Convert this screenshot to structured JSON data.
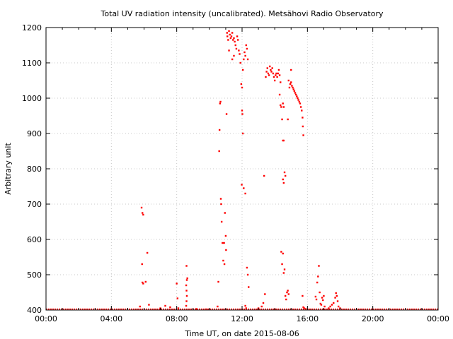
{
  "chart_data": {
    "type": "scatter",
    "title": "Total UV radiation intensity (uncalibrated). Metsähovi Radio Observatory",
    "xlabel": "Time UT, on date 2015-08-06",
    "ylabel": "Arbitrary unit",
    "xlim": [
      0,
      24
    ],
    "ylim": [
      400,
      1200
    ],
    "x_unit": "hours UT",
    "x_ticks": [
      0,
      4,
      8,
      12,
      16,
      20,
      24
    ],
    "x_tick_labels": [
      "00:00",
      "04:00",
      "08:00",
      "12:00",
      "16:00",
      "20:00",
      "00:00"
    ],
    "y_ticks": [
      400,
      500,
      600,
      700,
      800,
      900,
      1000,
      1100,
      1200
    ],
    "y_tick_labels": [
      "400",
      "500",
      "600",
      "700",
      "800",
      "900",
      "1000",
      "1100",
      "1200"
    ],
    "grid": true,
    "legend": "none",
    "marker_color": "#ff0000",
    "baseline": {
      "x_start": 0,
      "x_end": 24,
      "y": 400
    },
    "series": [
      {
        "points": [
          [
            5.75,
            410
          ],
          [
            5.85,
            690
          ],
          [
            5.9,
            675
          ],
          [
            5.95,
            670
          ],
          [
            5.88,
            530
          ],
          [
            5.9,
            478
          ],
          [
            5.95,
            475
          ],
          [
            6.1,
            480
          ],
          [
            6.2,
            562
          ],
          [
            6.3,
            415
          ],
          [
            7.0,
            405
          ],
          [
            7.3,
            412
          ],
          [
            7.6,
            408
          ],
          [
            8.0,
            475
          ],
          [
            8.05,
            433
          ],
          [
            8.1,
            405
          ],
          [
            8.6,
            525
          ],
          [
            8.65,
            490
          ],
          [
            8.62,
            485
          ],
          [
            8.58,
            470
          ],
          [
            8.6,
            455
          ],
          [
            8.62,
            440
          ],
          [
            8.6,
            425
          ],
          [
            8.58,
            412
          ],
          [
            9.2,
            403
          ],
          [
            9.8,
            402
          ],
          [
            10.5,
            410
          ],
          [
            10.55,
            480
          ],
          [
            10.6,
            850
          ],
          [
            10.62,
            910
          ],
          [
            10.65,
            985
          ],
          [
            10.68,
            990
          ],
          [
            10.7,
            715
          ],
          [
            10.72,
            700
          ],
          [
            10.75,
            650
          ],
          [
            10.8,
            590
          ],
          [
            10.85,
            540
          ],
          [
            10.9,
            590
          ],
          [
            10.92,
            530
          ],
          [
            10.95,
            675
          ],
          [
            11.0,
            610
          ],
          [
            11.02,
            570
          ],
          [
            11.05,
            955
          ],
          [
            11.08,
            1185
          ],
          [
            11.1,
            1175
          ],
          [
            11.15,
            1165
          ],
          [
            11.2,
            1190
          ],
          [
            11.25,
            1180
          ],
          [
            11.3,
            1170
          ],
          [
            11.35,
            1175
          ],
          [
            11.4,
            1185
          ],
          [
            11.45,
            1165
          ],
          [
            11.5,
            1170
          ],
          [
            11.55,
            1160
          ],
          [
            11.6,
            1150
          ],
          [
            11.65,
            1140
          ],
          [
            11.7,
            1175
          ],
          [
            11.75,
            1165
          ],
          [
            11.8,
            1135
          ],
          [
            11.85,
            1125
          ],
          [
            11.9,
            1100
          ],
          [
            11.95,
            1040
          ],
          [
            12.0,
            1030
          ],
          [
            12.05,
            1080
          ],
          [
            12.1,
            1110
          ],
          [
            12.15,
            1130
          ],
          [
            12.2,
            1120
          ],
          [
            12.25,
            1150
          ],
          [
            12.3,
            1140
          ],
          [
            12.35,
            1110
          ],
          [
            12.0,
            965
          ],
          [
            12.02,
            955
          ],
          [
            12.05,
            900
          ],
          [
            11.98,
            755
          ],
          [
            12.1,
            745
          ],
          [
            12.2,
            730
          ],
          [
            12.3,
            520
          ],
          [
            12.35,
            500
          ],
          [
            12.4,
            465
          ],
          [
            12.2,
            412
          ],
          [
            12.25,
            405
          ],
          [
            11.2,
            1135
          ],
          [
            11.5,
            1120
          ],
          [
            11.4,
            1110
          ],
          [
            13.0,
            405
          ],
          [
            13.2,
            410
          ],
          [
            13.3,
            420
          ],
          [
            13.35,
            780
          ],
          [
            13.4,
            445
          ],
          [
            13.45,
            1060
          ],
          [
            13.5,
            1075
          ],
          [
            13.55,
            1085
          ],
          [
            13.6,
            1070
          ],
          [
            13.65,
            1065
          ],
          [
            13.7,
            1090
          ],
          [
            13.75,
            1080
          ],
          [
            13.8,
            1075
          ],
          [
            13.85,
            1085
          ],
          [
            13.9,
            1070
          ],
          [
            13.95,
            1060
          ],
          [
            14.0,
            1050
          ],
          [
            14.05,
            1065
          ],
          [
            14.1,
            1070
          ],
          [
            14.15,
            1060
          ],
          [
            14.2,
            1070
          ],
          [
            14.25,
            1080
          ],
          [
            14.3,
            1065
          ],
          [
            14.35,
            1045
          ],
          [
            14.3,
            1010
          ],
          [
            14.35,
            980
          ],
          [
            14.4,
            975
          ],
          [
            14.5,
            985
          ],
          [
            14.55,
            975
          ],
          [
            14.45,
            940
          ],
          [
            14.5,
            880
          ],
          [
            14.55,
            880
          ],
          [
            14.5,
            770
          ],
          [
            14.55,
            760
          ],
          [
            14.6,
            790
          ],
          [
            14.65,
            780
          ],
          [
            14.4,
            565
          ],
          [
            14.45,
            530
          ],
          [
            14.5,
            560
          ],
          [
            14.55,
            505
          ],
          [
            14.6,
            515
          ],
          [
            14.65,
            440
          ],
          [
            14.7,
            430
          ],
          [
            14.75,
            450
          ],
          [
            14.8,
            455
          ],
          [
            14.85,
            445
          ],
          [
            14.9,
            1030
          ],
          [
            14.95,
            1040
          ],
          [
            15.0,
            1045
          ],
          [
            15.05,
            1035
          ],
          [
            15.1,
            1030
          ],
          [
            15.15,
            1025
          ],
          [
            15.2,
            1020
          ],
          [
            15.25,
            1015
          ],
          [
            15.3,
            1010
          ],
          [
            15.35,
            1005
          ],
          [
            15.4,
            1000
          ],
          [
            15.45,
            995
          ],
          [
            15.5,
            990
          ],
          [
            15.55,
            985
          ],
          [
            15.6,
            975
          ],
          [
            15.65,
            965
          ],
          [
            15.7,
            945
          ],
          [
            15.72,
            920
          ],
          [
            15.75,
            895
          ],
          [
            14.85,
            1050
          ],
          [
            14.95,
            1040
          ],
          [
            14.8,
            940
          ],
          [
            15.0,
            1080
          ],
          [
            15.7,
            440
          ],
          [
            15.75,
            408
          ],
          [
            15.8,
            405
          ],
          [
            15.9,
            403
          ],
          [
            16.5,
            438
          ],
          [
            16.55,
            430
          ],
          [
            16.6,
            478
          ],
          [
            16.65,
            495
          ],
          [
            16.7,
            525
          ],
          [
            16.75,
            450
          ],
          [
            16.8,
            418
          ],
          [
            16.85,
            415
          ],
          [
            16.9,
            435
          ],
          [
            16.95,
            428
          ],
          [
            17.0,
            440
          ],
          [
            17.05,
            410
          ],
          [
            17.3,
            405
          ],
          [
            17.4,
            410
          ],
          [
            17.5,
            415
          ],
          [
            17.6,
            420
          ],
          [
            17.7,
            435
          ],
          [
            17.75,
            448
          ],
          [
            17.8,
            440
          ],
          [
            17.85,
            425
          ],
          [
            17.9,
            410
          ],
          [
            18.0,
            405
          ]
        ]
      }
    ]
  }
}
